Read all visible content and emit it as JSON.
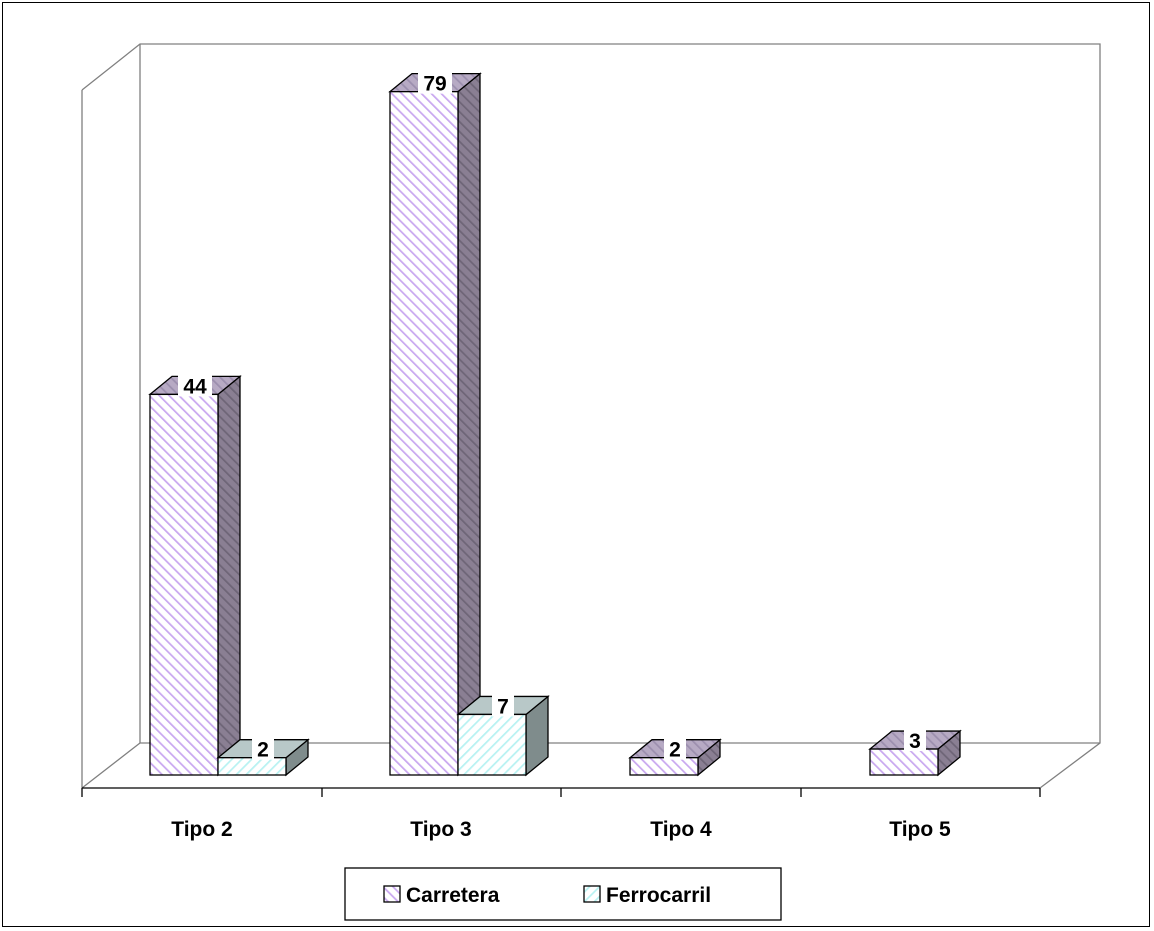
{
  "chart_data": {
    "type": "bar",
    "title": "",
    "xlabel": "",
    "ylabel": "",
    "categories": [
      "Tipo 2",
      "Tipo 3",
      "Tipo 4",
      "Tipo 5"
    ],
    "series": [
      {
        "name": "Carretera",
        "values": [
          44,
          79,
          2,
          3
        ],
        "color": "#e6d9ff"
      },
      {
        "name": "Ferrocarril",
        "values": [
          2,
          7,
          null,
          null
        ],
        "color": "#e0ffff"
      }
    ],
    "ylim": [
      0,
      80
    ],
    "grid": false,
    "legend": "bottom",
    "data_labels": [
      "44",
      "2",
      "79",
      "7",
      "2",
      "3"
    ]
  }
}
